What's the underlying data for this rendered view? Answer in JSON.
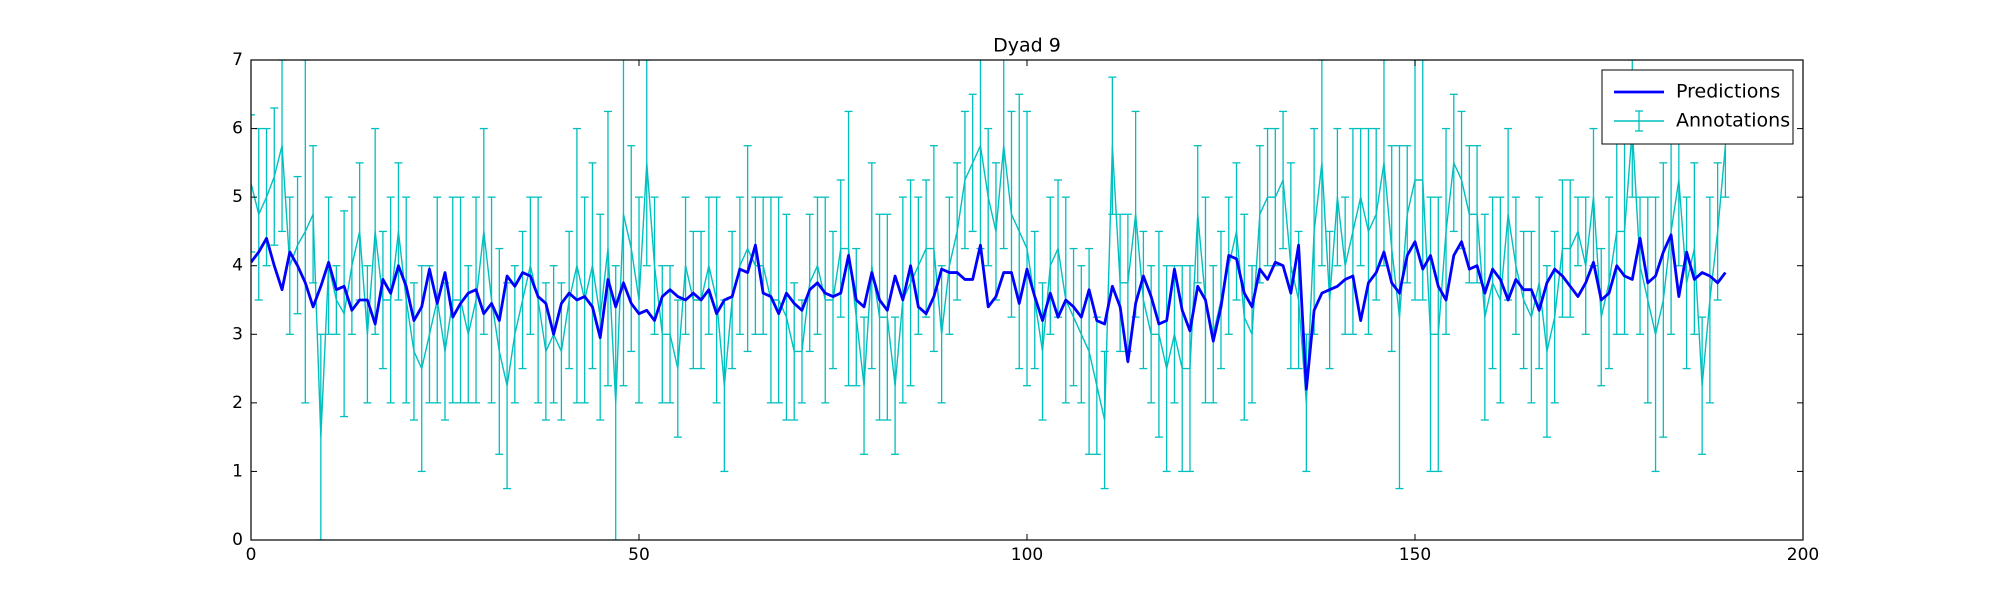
{
  "chart_data": {
    "type": "line",
    "title": "Dyad 9",
    "x": [
      0,
      1,
      2,
      3,
      4,
      5,
      6,
      7,
      8,
      9,
      10,
      11,
      12,
      13,
      14,
      15,
      16,
      17,
      18,
      19,
      20,
      21,
      22,
      23,
      24,
      25,
      26,
      27,
      28,
      29,
      30,
      31,
      32,
      33,
      34,
      35,
      36,
      37,
      38,
      39,
      40,
      41,
      42,
      43,
      44,
      45,
      46,
      47,
      48,
      49,
      50,
      51,
      52,
      53,
      54,
      55,
      56,
      57,
      58,
      59,
      60,
      61,
      62,
      63,
      64,
      65,
      66,
      67,
      68,
      69,
      70,
      71,
      72,
      73,
      74,
      75,
      76,
      77,
      78,
      79,
      80,
      81,
      82,
      83,
      84,
      85,
      86,
      87,
      88,
      89,
      90,
      91,
      92,
      93,
      94,
      95,
      96,
      97,
      98,
      99,
      100,
      101,
      102,
      103,
      104,
      105,
      106,
      107,
      108,
      109,
      110,
      111,
      112,
      113,
      114,
      115,
      116,
      117,
      118,
      119,
      120,
      121,
      122,
      123,
      124,
      125,
      126,
      127,
      128,
      129,
      130,
      131,
      132,
      133,
      134,
      135,
      136,
      137,
      138,
      139,
      140,
      141,
      142,
      143,
      144,
      145,
      146,
      147,
      148,
      149,
      150,
      151,
      152,
      153,
      154,
      155,
      156,
      157,
      158,
      159,
      160,
      161,
      162,
      163,
      164,
      165,
      166,
      167,
      168,
      169,
      170,
      171,
      172,
      173,
      174,
      175,
      176,
      177,
      178,
      179,
      180,
      181,
      182,
      183,
      184,
      185,
      186,
      187,
      188,
      189,
      190
    ],
    "series": [
      {
        "name": "Predictions",
        "color": "#0000ff",
        "values": [
          4.05,
          4.2,
          4.4,
          4.0,
          3.65,
          4.2,
          4.0,
          3.75,
          3.4,
          3.7,
          4.05,
          3.65,
          3.7,
          3.35,
          3.5,
          3.5,
          3.15,
          3.8,
          3.6,
          4.0,
          3.7,
          3.2,
          3.4,
          3.95,
          3.45,
          3.9,
          3.25,
          3.45,
          3.6,
          3.65,
          3.3,
          3.45,
          3.2,
          3.85,
          3.7,
          3.9,
          3.85,
          3.55,
          3.45,
          3.0,
          3.45,
          3.6,
          3.5,
          3.55,
          3.4,
          2.95,
          3.8,
          3.4,
          3.75,
          3.45,
          3.3,
          3.35,
          3.2,
          3.55,
          3.65,
          3.55,
          3.5,
          3.6,
          3.5,
          3.65,
          3.3,
          3.5,
          3.55,
          3.95,
          3.9,
          4.3,
          3.6,
          3.55,
          3.3,
          3.6,
          3.45,
          3.35,
          3.65,
          3.75,
          3.6,
          3.55,
          3.6,
          4.15,
          3.5,
          3.4,
          3.9,
          3.5,
          3.35,
          3.85,
          3.5,
          4.0,
          3.4,
          3.3,
          3.55,
          3.95,
          3.9,
          3.9,
          3.8,
          3.8,
          4.3,
          3.4,
          3.55,
          3.9,
          3.9,
          3.45,
          3.95,
          3.55,
          3.2,
          3.6,
          3.25,
          3.5,
          3.4,
          3.25,
          3.65,
          3.2,
          3.15,
          3.7,
          3.4,
          2.6,
          3.45,
          3.85,
          3.55,
          3.15,
          3.2,
          3.95,
          3.35,
          3.05,
          3.7,
          3.5,
          2.9,
          3.4,
          4.15,
          4.1,
          3.6,
          3.4,
          3.95,
          3.8,
          4.05,
          4.0,
          3.6,
          4.3,
          2.2,
          3.35,
          3.6,
          3.65,
          3.7,
          3.8,
          3.85,
          3.2,
          3.75,
          3.9,
          4.2,
          3.75,
          3.6,
          4.15,
          4.35,
          3.95,
          4.15,
          3.7,
          3.5,
          4.15,
          4.35,
          3.95,
          4.0,
          3.6,
          3.95,
          3.8,
          3.5,
          3.8,
          3.65,
          3.65,
          3.35,
          3.75,
          3.95,
          3.85,
          3.7,
          3.55,
          3.75,
          4.05,
          3.5,
          3.6,
          4.0,
          3.85,
          3.8,
          4.4,
          3.75,
          3.85,
          4.2,
          4.45,
          3.55,
          4.2,
          3.8,
          3.9,
          3.85,
          3.75,
          3.9
        ]
      },
      {
        "name": "Annotations",
        "color": "#00bfbf",
        "values": [
          5.2,
          4.75,
          5.0,
          5.3,
          5.75,
          4.0,
          4.3,
          4.5,
          4.75,
          1.5,
          4.0,
          3.5,
          3.3,
          4.0,
          4.5,
          3.0,
          4.5,
          3.5,
          3.5,
          4.5,
          3.5,
          2.75,
          2.5,
          3.0,
          3.5,
          2.75,
          3.5,
          3.5,
          3.0,
          3.5,
          4.5,
          3.5,
          2.75,
          2.25,
          3.0,
          3.5,
          4.0,
          3.5,
          2.75,
          3.0,
          2.75,
          3.5,
          4.0,
          3.5,
          4.0,
          3.25,
          4.25,
          2.0,
          4.75,
          4.25,
          3.5,
          5.5,
          4.0,
          3.0,
          3.0,
          2.5,
          4.0,
          3.5,
          3.5,
          4.0,
          3.5,
          2.25,
          3.5,
          4.0,
          4.25,
          4.0,
          4.0,
          3.5,
          3.5,
          3.25,
          2.75,
          2.75,
          3.75,
          4.0,
          3.5,
          3.5,
          4.25,
          4.25,
          3.25,
          2.25,
          4.0,
          3.25,
          3.25,
          2.25,
          3.5,
          3.75,
          4.0,
          4.25,
          4.25,
          3.0,
          4.0,
          4.5,
          5.25,
          5.5,
          5.75,
          5.0,
          4.5,
          5.75,
          4.75,
          4.5,
          4.25,
          3.5,
          2.75,
          4.0,
          4.25,
          3.5,
          3.25,
          3.0,
          2.75,
          2.25,
          1.75,
          5.75,
          3.75,
          3.75,
          4.75,
          3.5,
          3.0,
          3.0,
          2.5,
          3.0,
          2.5,
          2.5,
          4.75,
          3.5,
          3.0,
          3.5,
          4.0,
          4.5,
          3.25,
          3.0,
          4.75,
          5.0,
          5.0,
          5.25,
          4.0,
          3.5,
          2.0,
          4.5,
          5.5,
          3.5,
          5.0,
          4.0,
          4.5,
          5.0,
          4.5,
          4.75,
          5.5,
          4.25,
          3.25,
          4.75,
          5.25,
          5.25,
          3.0,
          3.0,
          4.5,
          5.5,
          5.25,
          4.75,
          4.75,
          3.25,
          3.75,
          3.5,
          4.75,
          4.0,
          3.5,
          3.25,
          3.75,
          2.75,
          3.25,
          4.25,
          4.25,
          4.5,
          4.0,
          5.0,
          3.25,
          3.75,
          4.5,
          4.5,
          6.0,
          4.0,
          3.5,
          3.0,
          3.5,
          4.5,
          5.25,
          3.75,
          4.25,
          2.25,
          3.5,
          4.5,
          5.75
        ],
        "errors": [
          1,
          1.25,
          1,
          1,
          1.25,
          1,
          1,
          2.5,
          1,
          1.5,
          1,
          0.5,
          1.5,
          1,
          1,
          1,
          1.5,
          1,
          1.5,
          1,
          1.5,
          1,
          1.5,
          1,
          1.5,
          1,
          1.5,
          1.5,
          1,
          1.5,
          1.5,
          1.5,
          1.5,
          1.5,
          1,
          1,
          1,
          1.5,
          1,
          1,
          1,
          1,
          2,
          1.5,
          1.5,
          1.5,
          2,
          2,
          2.5,
          1.5,
          1.5,
          1.5,
          1,
          1,
          1,
          1,
          1,
          1,
          1,
          1,
          1.5,
          1.25,
          1,
          1,
          1.5,
          1,
          1,
          1.5,
          1.5,
          1.5,
          1,
          0.75,
          1,
          1,
          1.5,
          1,
          1,
          2,
          1,
          1,
          1.5,
          1.5,
          1.5,
          1,
          1.5,
          1.5,
          1,
          1,
          1.5,
          1,
          1,
          1,
          1,
          1,
          1.5,
          1,
          1,
          1.5,
          1.5,
          2,
          2,
          1,
          1,
          1,
          1,
          1.5,
          1,
          1,
          1.5,
          1,
          1,
          1,
          1,
          1,
          1.5,
          1,
          1,
          1.5,
          1.5,
          1,
          1.5,
          1.5,
          1,
          1.5,
          1,
          1,
          1,
          1,
          1.5,
          1,
          1,
          1,
          1,
          1,
          1.5,
          1,
          1,
          1.5,
          1.5,
          1,
          1,
          1,
          1.5,
          1,
          1.5,
          1.25,
          1.5,
          1.5,
          2.5,
          1,
          1.75,
          1.75,
          2,
          2,
          1.5,
          1,
          1,
          1,
          1,
          1.5,
          1.25,
          1.5,
          1.25,
          1,
          1,
          1.25,
          1.25,
          1.25,
          1.25,
          1,
          1,
          0.5,
          1,
          1,
          1,
          1.25,
          1.5,
          1.5,
          1,
          1,
          1.5,
          2,
          2,
          1.5,
          1.25,
          1.25,
          1.25,
          1,
          1.5,
          1,
          0.75
        ]
      }
    ],
    "xlim": [
      0,
      200
    ],
    "xticks": [
      0,
      50,
      100,
      150,
      200
    ],
    "ylim": [
      0,
      7
    ],
    "yticks": [
      0,
      1,
      2,
      3,
      4,
      5,
      6,
      7
    ],
    "legend": "upper right"
  }
}
